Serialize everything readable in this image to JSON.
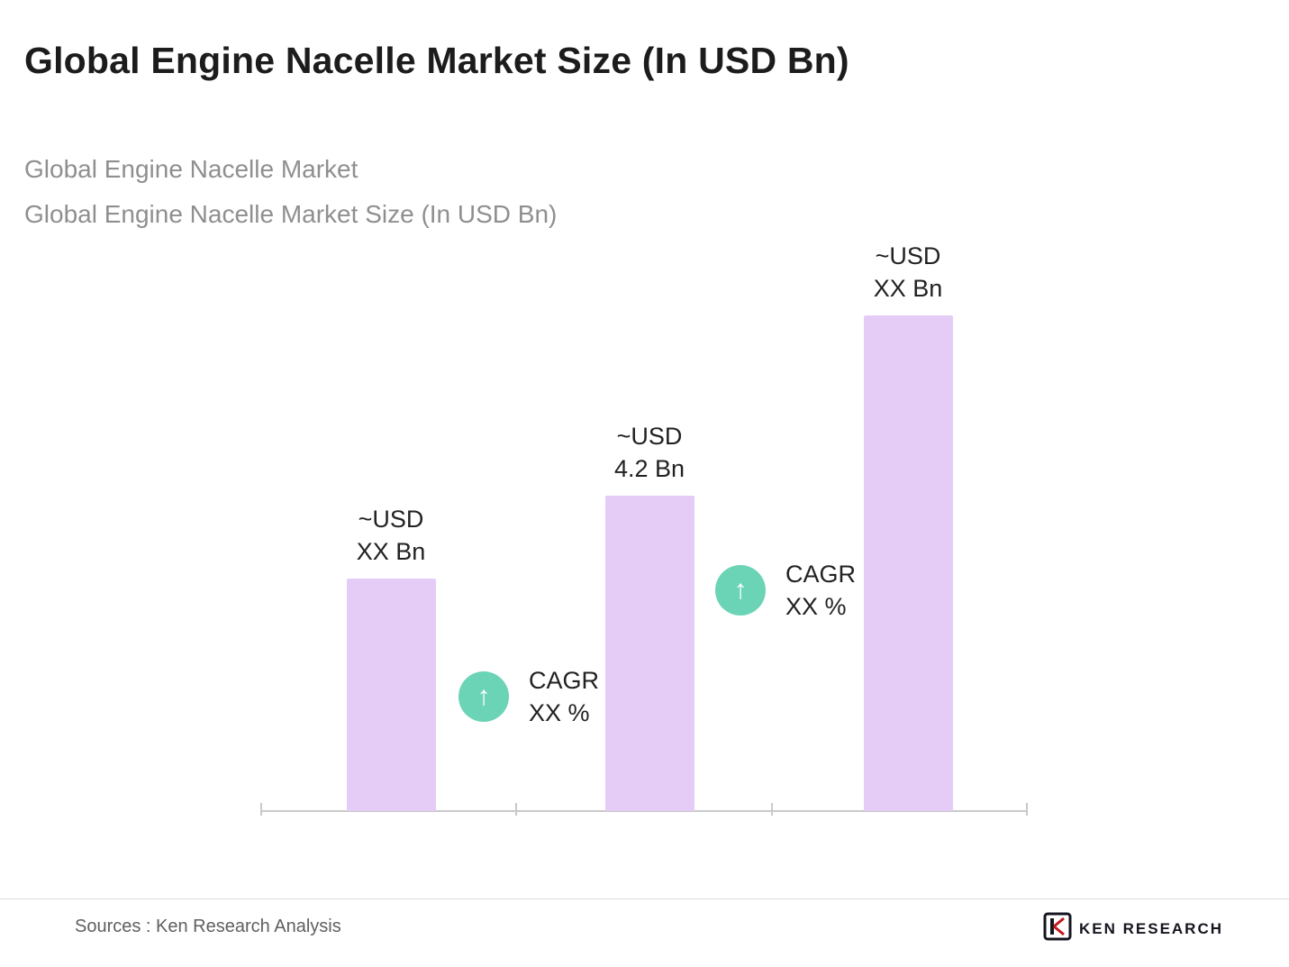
{
  "title": "Global Engine Nacelle Market Size (In USD Bn)",
  "subtitles": {
    "line1": "Global Engine Nacelle Market",
    "line2": "Global Engine Nacelle Market Size (In USD Bn)"
  },
  "chart_data": {
    "type": "bar",
    "categories": [
      "",
      "",
      ""
    ],
    "values": [
      3.1,
      4.2,
      6.6
    ],
    "value_note": "values in USD Bn; only middle bar labeled 4.2, others shown as XX",
    "value_labels": [
      [
        "~USD",
        "XX Bn"
      ],
      [
        "~USD",
        "4.2 Bn"
      ],
      [
        "~USD",
        "XX Bn"
      ]
    ],
    "annotations": [
      {
        "icon": "arrow-up-icon",
        "lines": [
          "CAGR",
          "XX %"
        ]
      },
      {
        "icon": "arrow-up-icon",
        "lines": [
          "CAGR",
          "XX %"
        ]
      }
    ],
    "title": "Global Engine Nacelle Market Size (In USD Bn)",
    "xlabel": "",
    "ylabel": "",
    "ylim": [
      0,
      7.2
    ],
    "grid": false,
    "legend": false,
    "bar_color": "#e4ccf7",
    "annotation_circle_color": "#6bd4b6"
  },
  "footer": {
    "source": "Sources : Ken Research Analysis",
    "logo_text": "KEN RESEARCH"
  }
}
